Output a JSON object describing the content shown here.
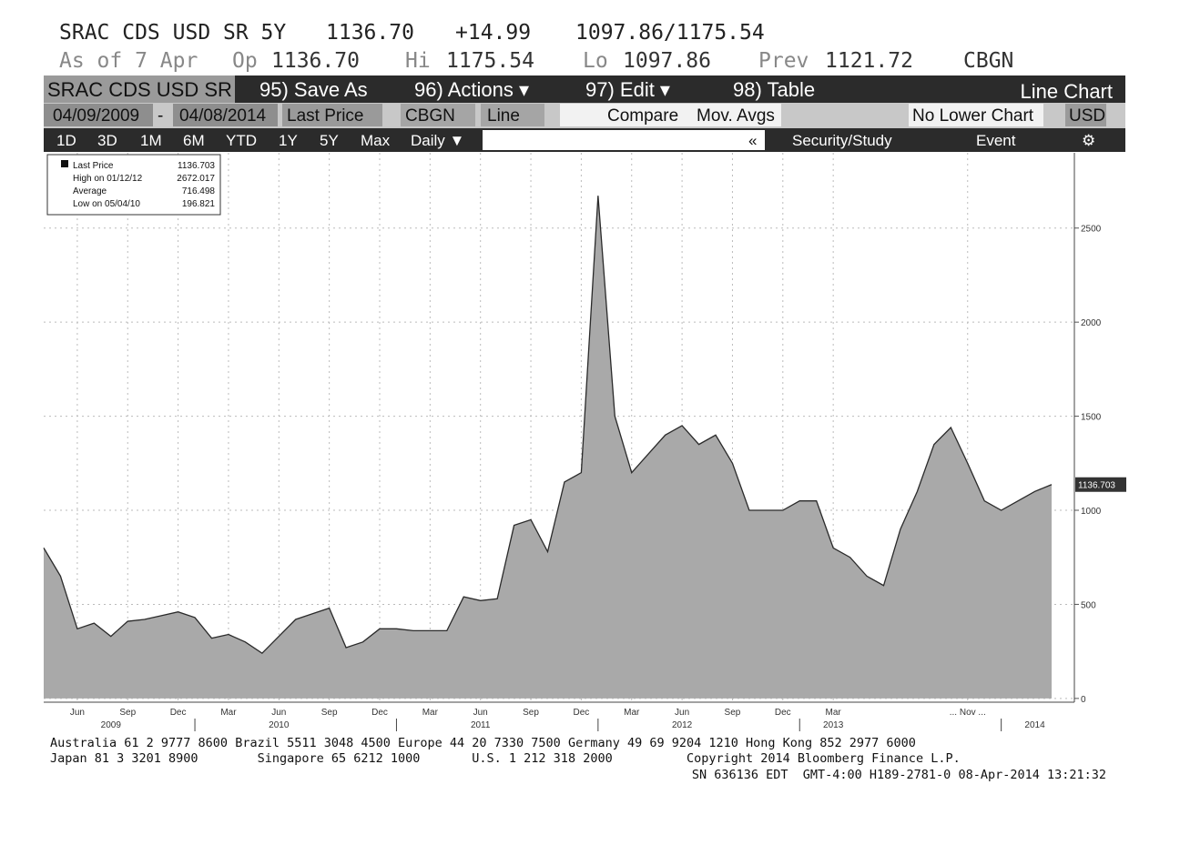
{
  "header": {
    "line1": [
      "SRAC CDS USD SR 5Y",
      "1136.70",
      "+14.99",
      "1097.86/1175.54"
    ],
    "line2": [
      "As of 7 Apr",
      "Op",
      "1136.70",
      "Hi",
      "1175.54",
      "Lo",
      "1097.86",
      "Prev",
      "1121.72",
      "CBGN"
    ]
  },
  "toolbar": {
    "row1": [
      "SRAC CDS USD SR",
      "95) Save As",
      "96) Actions ▾",
      "97) Edit ▾",
      "98) Table",
      "Line Chart"
    ],
    "row2": [
      "04/09/2009",
      "-",
      "04/08/2014",
      "Last Price",
      "CBGN",
      "Line",
      "Compare",
      "Mov. Avgs",
      "No Lower Chart",
      "USD"
    ],
    "row3": [
      "1D",
      "3D",
      "1M",
      "6M",
      "YTD",
      "1Y",
      "5Y",
      "Max",
      "Daily ▼",
      "«",
      "Security/Study",
      "Event",
      "⚙"
    ]
  },
  "chart_data": {
    "type": "area",
    "color": "#a9a9a9",
    "line_color": "#2a2a2a",
    "grid": true,
    "x": [
      "2009-04",
      "2009-05",
      "2009-06",
      "2009-07",
      "2009-08",
      "2009-09",
      "2009-10",
      "2009-11",
      "2009-12",
      "2010-01",
      "2010-02",
      "2010-03",
      "2010-04",
      "2010-05",
      "2010-06",
      "2010-07",
      "2010-08",
      "2010-09",
      "2010-10",
      "2010-11",
      "2010-12",
      "2011-01",
      "2011-02",
      "2011-03",
      "2011-04",
      "2011-05",
      "2011-06",
      "2011-07",
      "2011-08",
      "2011-09",
      "2011-10",
      "2011-11",
      "2011-12",
      "2012-01",
      "2012-02",
      "2012-03",
      "2012-04",
      "2012-05",
      "2012-06",
      "2012-07",
      "2012-08",
      "2012-09",
      "2012-10",
      "2012-11",
      "2012-12",
      "2013-01",
      "2013-02",
      "2013-03",
      "2013-04",
      "2013-05",
      "2013-06",
      "2013-07",
      "2013-08",
      "2013-09",
      "2013-10",
      "2013-11",
      "2013-12",
      "2014-01",
      "2014-02",
      "2014-03",
      "2014-04"
    ],
    "values": [
      800,
      650,
      370,
      400,
      330,
      410,
      420,
      440,
      460,
      430,
      320,
      340,
      300,
      240,
      330,
      420,
      450,
      480,
      270,
      300,
      370,
      370,
      360,
      360,
      360,
      540,
      520,
      530,
      920,
      950,
      780,
      1150,
      1200,
      2672,
      1500,
      1200,
      1300,
      1400,
      1450,
      1350,
      1400,
      1250,
      1000,
      1000,
      1000,
      1050,
      1050,
      800,
      750,
      650,
      600,
      900,
      1100,
      1350,
      1440,
      1250,
      1050,
      1000,
      1050,
      1100,
      1136.703
    ],
    "ylim": [
      -20,
      2900
    ],
    "yticks": [
      0,
      500,
      1000,
      1500,
      2000,
      2500
    ],
    "xticks": [
      {
        "value": "2009-06",
        "label": "Jun"
      },
      {
        "value": "2009-09",
        "label": "Sep"
      },
      {
        "value": "2009-12",
        "label": "Dec"
      },
      {
        "value": "2010-03",
        "label": "Mar"
      },
      {
        "value": "2010-06",
        "label": "Jun"
      },
      {
        "value": "2010-09",
        "label": "Sep"
      },
      {
        "value": "2010-12",
        "label": "Dec"
      },
      {
        "value": "2011-03",
        "label": "Mar"
      },
      {
        "value": "2011-06",
        "label": "Jun"
      },
      {
        "value": "2011-09",
        "label": "Sep"
      },
      {
        "value": "2011-12",
        "label": "Dec"
      },
      {
        "value": "2012-03",
        "label": "Mar"
      },
      {
        "value": "2012-06",
        "label": "Jun"
      },
      {
        "value": "2012-09",
        "label": "Sep"
      },
      {
        "value": "2012-12",
        "label": "Dec"
      },
      {
        "value": "2013-03",
        "label": "Mar"
      },
      {
        "value": "2013-11",
        "label": "... Nov ..."
      }
    ],
    "year_ticks": [
      {
        "value": "2009-08",
        "label": "2009"
      },
      {
        "value": "2010-06",
        "label": "2010"
      },
      {
        "value": "2011-06",
        "label": "2011"
      },
      {
        "value": "2012-06",
        "label": "2012"
      },
      {
        "value": "2013-03",
        "label": "2013"
      },
      {
        "value": "2014-03",
        "label": "2014"
      }
    ],
    "legend": [
      {
        "label": "Last Price",
        "value": 1136.703
      },
      {
        "label": "High on 01/12/12",
        "value": 2672.017
      },
      {
        "label": "Average",
        "value": 716.498
      },
      {
        "label": "Low on 05/04/10",
        "value": 196.821
      }
    ]
  },
  "footer": [
    "Australia 61 2 9777 8600 Brazil 5511 3048 4500 Europe 44 20 7330 7500 Germany 49 69 9204 1210 Hong Kong 852 2977 6000",
    "Japan 81 3 3201 8900        Singapore 65 6212 1000       U.S. 1 212 318 2000          Copyright 2014 Bloomberg Finance L.P.",
    "SN 636136 EDT  GMT-4:00 H189-2781-0 08-Apr-2014 13:21:32"
  ]
}
